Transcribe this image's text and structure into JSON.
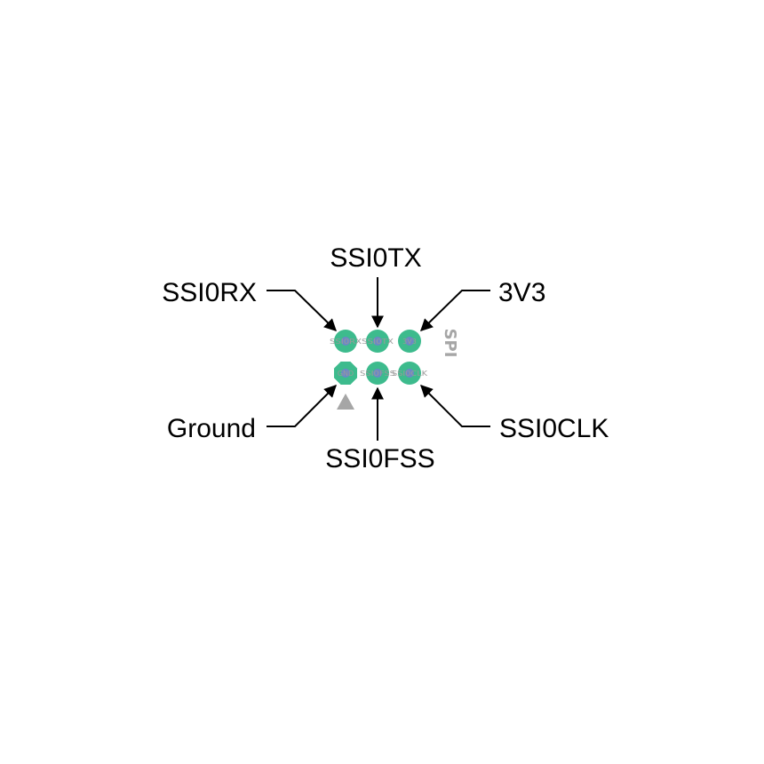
{
  "header": {
    "label": "SPI",
    "pin1_marker": "triangle"
  },
  "pins": {
    "top_left": {
      "callout": "SSI0RX",
      "silk": "SSI0RX"
    },
    "top_middle": {
      "callout": "SSI0TX",
      "silk": "SSI0TX"
    },
    "top_right": {
      "callout": "3V3",
      "silk": "3V3"
    },
    "bottom_left": {
      "callout": "Ground",
      "silk": "GND"
    },
    "bottom_middle": {
      "callout": "SSI0FSS",
      "silk": "SSI0FSS"
    },
    "bottom_right": {
      "callout": "SSI0CLK",
      "silk": "SSI0CLK"
    }
  },
  "colors": {
    "pad": "#3dbb8d",
    "drill": "#6b88c6",
    "silkscreen": "#9a9a9a",
    "leader": "#000000"
  }
}
